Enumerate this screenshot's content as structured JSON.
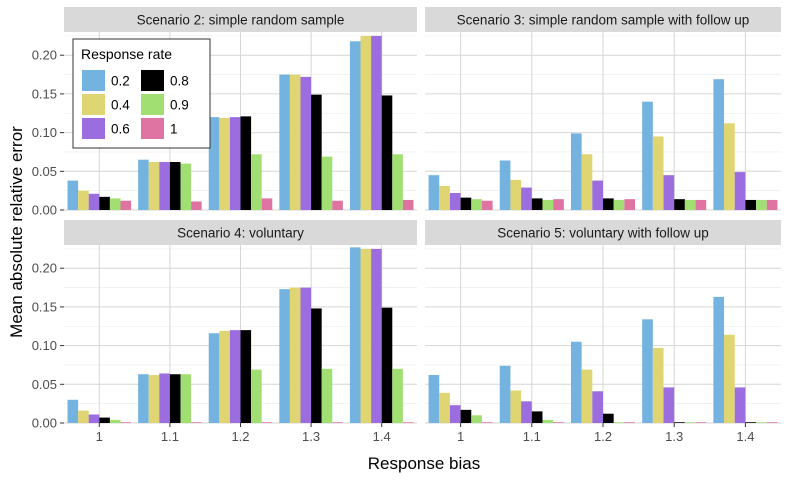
{
  "chart_data": {
    "type": "bar",
    "xlabel": "Response bias",
    "ylabel": "Mean absolute relative error",
    "categories": [
      "1",
      "1.1",
      "1.2",
      "1.3",
      "1.4"
    ],
    "ylim": [
      0,
      0.23
    ],
    "yticks": [
      "0.00",
      "0.05",
      "0.10",
      "0.15",
      "0.20"
    ],
    "ytick_values": [
      0,
      0.05,
      0.1,
      0.15,
      0.2
    ],
    "grid": true,
    "legend": {
      "title": "Response rate",
      "placement": "top-left",
      "entries": [
        "0.2",
        "0.4",
        "0.6",
        "0.8",
        "0.9",
        "1"
      ]
    },
    "series_colors": [
      "#74b3df",
      "#dfd573",
      "#9c6ddf",
      "#000000",
      "#a2df73",
      "#df74a3"
    ],
    "panels": [
      {
        "title": "Scenario 2: simple random sample",
        "series": [
          {
            "name": "0.2",
            "values": [
              0.038,
              0.065,
              0.12,
              0.175,
              0.218
            ]
          },
          {
            "name": "0.4",
            "values": [
              0.025,
              0.062,
              0.119,
              0.175,
              0.225
            ]
          },
          {
            "name": "0.6",
            "values": [
              0.021,
              0.062,
              0.12,
              0.172,
              0.225
            ]
          },
          {
            "name": "0.8",
            "values": [
              0.017,
              0.062,
              0.121,
              0.149,
              0.148
            ]
          },
          {
            "name": "0.9",
            "values": [
              0.015,
              0.06,
              0.072,
              0.069,
              0.072
            ]
          },
          {
            "name": "1",
            "values": [
              0.012,
              0.011,
              0.015,
              0.012,
              0.013
            ]
          }
        ]
      },
      {
        "title": "Scenario 3: simple random sample with follow up",
        "series": [
          {
            "name": "0.2",
            "values": [
              0.045,
              0.064,
              0.099,
              0.14,
              0.169
            ]
          },
          {
            "name": "0.4",
            "values": [
              0.031,
              0.039,
              0.072,
              0.095,
              0.112
            ]
          },
          {
            "name": "0.6",
            "values": [
              0.022,
              0.029,
              0.038,
              0.045,
              0.049
            ]
          },
          {
            "name": "0.8",
            "values": [
              0.016,
              0.015,
              0.015,
              0.014,
              0.013
            ]
          },
          {
            "name": "0.9",
            "values": [
              0.014,
              0.013,
              0.013,
              0.013,
              0.013
            ]
          },
          {
            "name": "1",
            "values": [
              0.012,
              0.014,
              0.014,
              0.013,
              0.013
            ]
          }
        ]
      },
      {
        "title": "Scenario 4: voluntary",
        "series": [
          {
            "name": "0.2",
            "values": [
              0.03,
              0.063,
              0.116,
              0.173,
              0.227
            ]
          },
          {
            "name": "0.4",
            "values": [
              0.016,
              0.062,
              0.119,
              0.175,
              0.225
            ]
          },
          {
            "name": "0.6",
            "values": [
              0.011,
              0.064,
              0.12,
              0.175,
              0.225
            ]
          },
          {
            "name": "0.8",
            "values": [
              0.007,
              0.063,
              0.12,
              0.148,
              0.149
            ]
          },
          {
            "name": "0.9",
            "values": [
              0.004,
              0.063,
              0.069,
              0.07,
              0.07
            ]
          },
          {
            "name": "1",
            "values": [
              0.001,
              0.001,
              0.001,
              0.001,
              0.001
            ]
          }
        ]
      },
      {
        "title": "Scenario 5: voluntary with follow up",
        "series": [
          {
            "name": "0.2",
            "values": [
              0.062,
              0.074,
              0.105,
              0.134,
              0.163
            ]
          },
          {
            "name": "0.4",
            "values": [
              0.039,
              0.042,
              0.069,
              0.097,
              0.114
            ]
          },
          {
            "name": "0.6",
            "values": [
              0.023,
              0.028,
              0.041,
              0.046,
              0.046
            ]
          },
          {
            "name": "0.8",
            "values": [
              0.017,
              0.015,
              0.012,
              0.001,
              0.001
            ]
          },
          {
            "name": "0.9",
            "values": [
              0.01,
              0.004,
              0.001,
              0.001,
              0.001
            ]
          },
          {
            "name": "1",
            "values": [
              0.001,
              0.001,
              0.001,
              0.001,
              0.001
            ]
          }
        ]
      }
    ]
  }
}
